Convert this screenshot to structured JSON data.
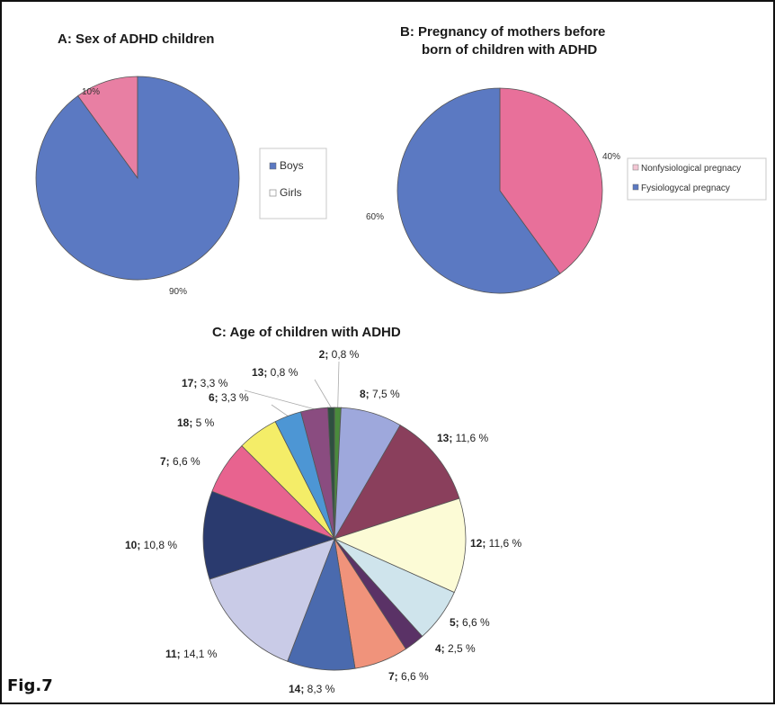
{
  "figure_label": "Fig.7",
  "chart_data": [
    {
      "type": "pie",
      "title": "A: Sex of ADHD children",
      "slices": [
        {
          "label": "Boys",
          "value": 90,
          "text": "90%",
          "color": "#5b79c2"
        },
        {
          "label": "Girls",
          "value": 10,
          "text": "10%",
          "color": "#e87fa3"
        }
      ],
      "legend": [
        "Boys",
        "Girls"
      ]
    },
    {
      "type": "pie",
      "title_lines": [
        "B: Pregnancy of mothers before",
        "born of children with ADHD"
      ],
      "slices": [
        {
          "label": "Nonfysiological pregnacy",
          "value": 40,
          "text": "40%",
          "color": "#e8709a"
        },
        {
          "label": "Fysiologycal pregnacy",
          "value": 60,
          "text": "60%",
          "color": "#5b79c2"
        }
      ],
      "legend": [
        "Nonfysiological pregnacy",
        "Fysiologycal pregnacy"
      ]
    },
    {
      "type": "pie",
      "title": "C: Age of children with ADHD",
      "slices": [
        {
          "age": "2",
          "pct": "0,8 %",
          "value": 0.8,
          "color": "#4a8a3c"
        },
        {
          "age": "8",
          "pct": "7,5 %",
          "value": 7.5,
          "color": "#9ea8dc"
        },
        {
          "age": "13",
          "pct": "11,6 %",
          "value": 11.6,
          "color": "#8a3f5c"
        },
        {
          "age": "12",
          "pct": "11,6 %",
          "value": 11.6,
          "color": "#fcfbd6"
        },
        {
          "age": "5",
          "pct": "6,6 %",
          "value": 6.6,
          "color": "#cfe4ec"
        },
        {
          "age": "4",
          "pct": "2,5 %",
          "value": 2.5,
          "color": "#5a3266"
        },
        {
          "age": "7",
          "pct": "6,6 %",
          "value": 6.6,
          "color": "#f0937b"
        },
        {
          "age": "14",
          "pct": "8,3 %",
          "value": 8.3,
          "color": "#4a6aae"
        },
        {
          "age": "11",
          "pct": "14,1 %",
          "value": 14.1,
          "color": "#c9cbe7"
        },
        {
          "age": "10",
          "pct": "10,8 %",
          "value": 10.8,
          "color": "#2a3a6e"
        },
        {
          "age": "7",
          "pct": "6,6 %",
          "value": 6.6,
          "color": "#e8638f"
        },
        {
          "age": "18",
          "pct": "5 %",
          "value": 5,
          "color": "#f4ed68"
        },
        {
          "age": "6",
          "pct": "3,3 %",
          "value": 3.3,
          "color": "#4d96d4"
        },
        {
          "age": "17",
          "pct": "3,3 %",
          "value": 3.3,
          "color": "#8a4c80"
        },
        {
          "age": "13",
          "pct": "0,8 %",
          "value": 0.8,
          "color": "#2e5040"
        }
      ]
    }
  ]
}
